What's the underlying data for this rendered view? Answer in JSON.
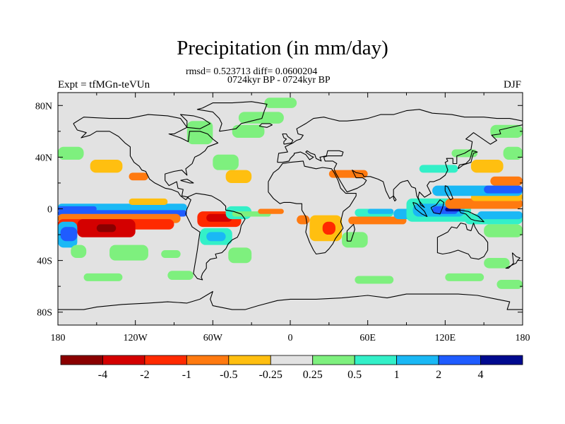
{
  "header": {
    "title": "Precipitation (in mm/day)",
    "stats": "rmsd= 0.523713 diff= 0.0600204",
    "subtitle": "0724kyr BP - 0724kyr BP",
    "experiment": "Expt = tfMGn-teVUn",
    "season": "DJF"
  },
  "chart_data": {
    "type": "heatmap",
    "map": "global precipitation difference, cylindrical equidistant",
    "xlim": [
      -180,
      180
    ],
    "ylim": [
      -90,
      90
    ],
    "x_ticks": [
      {
        "value": -180,
        "label": "180"
      },
      {
        "value": -120,
        "label": "120W"
      },
      {
        "value": -60,
        "label": "60W"
      },
      {
        "value": 0,
        "label": "0"
      },
      {
        "value": 60,
        "label": "60E"
      },
      {
        "value": 120,
        "label": "120E"
      },
      {
        "value": 180,
        "label": "180"
      }
    ],
    "y_ticks": [
      {
        "value": 80,
        "label": "80N"
      },
      {
        "value": 40,
        "label": "40N"
      },
      {
        "value": 0,
        "label": "0"
      },
      {
        "value": -40,
        "label": "40S"
      },
      {
        "value": -80,
        "label": "80S"
      }
    ],
    "colorbar": {
      "levels": [
        "-4",
        "-2",
        "-1",
        "-0.5",
        "-0.25",
        "0.25",
        "0.5",
        "1",
        "2",
        "4"
      ],
      "colors": [
        "#8a0000",
        "#d40000",
        "#ff2a00",
        "#ff7a10",
        "#ffbf10",
        "#e2e2e2",
        "#7ef07e",
        "#33f0c8",
        "#1ab8f5",
        "#1f5cff",
        "#000a8f"
      ]
    },
    "coastline_color": "#000000",
    "background_color": "#e2e2e2",
    "regions": [
      {
        "lon": [
          -180,
          -80
        ],
        "lat": [
          -2,
          4
        ],
        "level": 8
      },
      {
        "lon": [
          -180,
          -80
        ],
        "lat": [
          -6,
          -1
        ],
        "level": 9
      },
      {
        "lon": [
          -180,
          -150
        ],
        "lat": [
          -2,
          2
        ],
        "level": 9
      },
      {
        "lon": [
          -180,
          -85
        ],
        "lat": [
          -11,
          -4
        ],
        "level": 3
      },
      {
        "lon": [
          -180,
          -90
        ],
        "lat": [
          -16,
          -8
        ],
        "level": 2
      },
      {
        "lon": [
          -165,
          -120
        ],
        "lat": [
          -22,
          -8
        ],
        "level": 1
      },
      {
        "lon": [
          -150,
          -135
        ],
        "lat": [
          -18,
          -12
        ],
        "level": 0
      },
      {
        "lon": [
          -180,
          -165
        ],
        "lat": [
          -30,
          -10
        ],
        "level": 8
      },
      {
        "lon": [
          -178,
          -165
        ],
        "lat": [
          -25,
          -14
        ],
        "level": 9
      },
      {
        "lon": [
          -170,
          -158
        ],
        "lat": [
          -38,
          -28
        ],
        "level": 6
      },
      {
        "lon": [
          -140,
          -110
        ],
        "lat": [
          -40,
          -28
        ],
        "level": 6
      },
      {
        "lon": [
          -160,
          -130
        ],
        "lat": [
          -56,
          -50
        ],
        "level": 6
      },
      {
        "lon": [
          -72,
          -38
        ],
        "lat": [
          -14,
          -2
        ],
        "level": 2
      },
      {
        "lon": [
          -65,
          -45
        ],
        "lat": [
          -10,
          -4
        ],
        "level": 1
      },
      {
        "lon": [
          -70,
          -45
        ],
        "lat": [
          -28,
          -15
        ],
        "level": 7
      },
      {
        "lon": [
          -65,
          -50
        ],
        "lat": [
          -25,
          -18
        ],
        "level": 8
      },
      {
        "lon": [
          -50,
          -30
        ],
        "lat": [
          -8,
          2
        ],
        "level": 7
      },
      {
        "lon": [
          -45,
          -15
        ],
        "lat": [
          -6,
          -2
        ],
        "level": 6
      },
      {
        "lon": [
          -25,
          -5
        ],
        "lat": [
          -4,
          0
        ],
        "level": 3
      },
      {
        "lon": [
          -48,
          -30
        ],
        "lat": [
          -42,
          -30
        ],
        "level": 6
      },
      {
        "lon": [
          -100,
          -85
        ],
        "lat": [
          -38,
          -32
        ],
        "level": 6
      },
      {
        "lon": [
          -95,
          -75
        ],
        "lat": [
          -55,
          -48
        ],
        "level": 6
      },
      {
        "lon": [
          -125,
          -95
        ],
        "lat": [
          3,
          8
        ],
        "level": 4
      },
      {
        "lon": [
          -180,
          -160
        ],
        "lat": [
          38,
          48
        ],
        "level": 6
      },
      {
        "lon": [
          -155,
          -130
        ],
        "lat": [
          28,
          38
        ],
        "level": 4
      },
      {
        "lon": [
          -125,
          -110
        ],
        "lat": [
          22,
          28
        ],
        "level": 3
      },
      {
        "lon": [
          -60,
          -40
        ],
        "lat": [
          30,
          42
        ],
        "level": 6
      },
      {
        "lon": [
          -50,
          -30
        ],
        "lat": [
          20,
          30
        ],
        "level": 4
      },
      {
        "lon": [
          -80,
          -60
        ],
        "lat": [
          50,
          68
        ],
        "level": 6
      },
      {
        "lon": [
          -45,
          -20
        ],
        "lat": [
          55,
          65
        ],
        "level": 6
      },
      {
        "lon": [
          -20,
          5
        ],
        "lat": [
          78,
          86
        ],
        "level": 6
      },
      {
        "lon": [
          -40,
          -5
        ],
        "lat": [
          66,
          75
        ],
        "level": 6
      },
      {
        "lon": [
          15,
          40
        ],
        "lat": [
          -25,
          -5
        ],
        "level": 4
      },
      {
        "lon": [
          25,
          35
        ],
        "lat": [
          -20,
          -10
        ],
        "level": 2
      },
      {
        "lon": [
          40,
          60
        ],
        "lat": [
          -30,
          -18
        ],
        "level": 6
      },
      {
        "lon": [
          5,
          15
        ],
        "lat": [
          -12,
          -5
        ],
        "level": 3
      },
      {
        "lon": [
          45,
          90
        ],
        "lat": [
          -12,
          -6
        ],
        "level": 3
      },
      {
        "lon": [
          50,
          80
        ],
        "lat": [
          -6,
          0
        ],
        "level": 7
      },
      {
        "lon": [
          60,
          80
        ],
        "lat": [
          -4,
          0
        ],
        "level": 8
      },
      {
        "lon": [
          80,
          100
        ],
        "lat": [
          -8,
          0
        ],
        "level": 8
      },
      {
        "lon": [
          90,
          140
        ],
        "lat": [
          -10,
          8
        ],
        "level": 7
      },
      {
        "lon": [
          95,
          135
        ],
        "lat": [
          -6,
          4
        ],
        "level": 8
      },
      {
        "lon": [
          110,
          130
        ],
        "lat": [
          -4,
          2
        ],
        "level": 9
      },
      {
        "lon": [
          120,
          132
        ],
        "lat": [
          -2,
          1
        ],
        "level": 10
      },
      {
        "lon": [
          135,
          180
        ],
        "lat": [
          -12,
          -4
        ],
        "level": 7
      },
      {
        "lon": [
          145,
          180
        ],
        "lat": [
          -8,
          -2
        ],
        "level": 8
      },
      {
        "lon": [
          150,
          180
        ],
        "lat": [
          -22,
          -12
        ],
        "level": 6
      },
      {
        "lon": [
          120,
          180
        ],
        "lat": [
          0,
          8
        ],
        "level": 3
      },
      {
        "lon": [
          140,
          180
        ],
        "lat": [
          6,
          12
        ],
        "level": 4
      },
      {
        "lon": [
          110,
          180
        ],
        "lat": [
          10,
          18
        ],
        "level": 8
      },
      {
        "lon": [
          150,
          180
        ],
        "lat": [
          12,
          18
        ],
        "level": 9
      },
      {
        "lon": [
          155,
          180
        ],
        "lat": [
          18,
          25
        ],
        "level": 3
      },
      {
        "lon": [
          140,
          165
        ],
        "lat": [
          28,
          38
        ],
        "level": 4
      },
      {
        "lon": [
          165,
          180
        ],
        "lat": [
          38,
          48
        ],
        "level": 6
      },
      {
        "lon": [
          125,
          145
        ],
        "lat": [
          40,
          46
        ],
        "level": 6
      },
      {
        "lon": [
          100,
          130
        ],
        "lat": [
          28,
          34
        ],
        "level": 7
      },
      {
        "lon": [
          155,
          180
        ],
        "lat": [
          55,
          65
        ],
        "level": 6
      },
      {
        "lon": [
          30,
          60
        ],
        "lat": [
          24,
          30
        ],
        "level": 3
      },
      {
        "lon": [
          150,
          170
        ],
        "lat": [
          -46,
          -38
        ],
        "level": 6
      },
      {
        "lon": [
          120,
          150
        ],
        "lat": [
          -56,
          -50
        ],
        "level": 6
      },
      {
        "lon": [
          50,
          80
        ],
        "lat": [
          -58,
          -52
        ],
        "level": 6
      },
      {
        "lon": [
          160,
          180
        ],
        "lat": [
          -62,
          -55
        ],
        "level": 6
      }
    ]
  }
}
